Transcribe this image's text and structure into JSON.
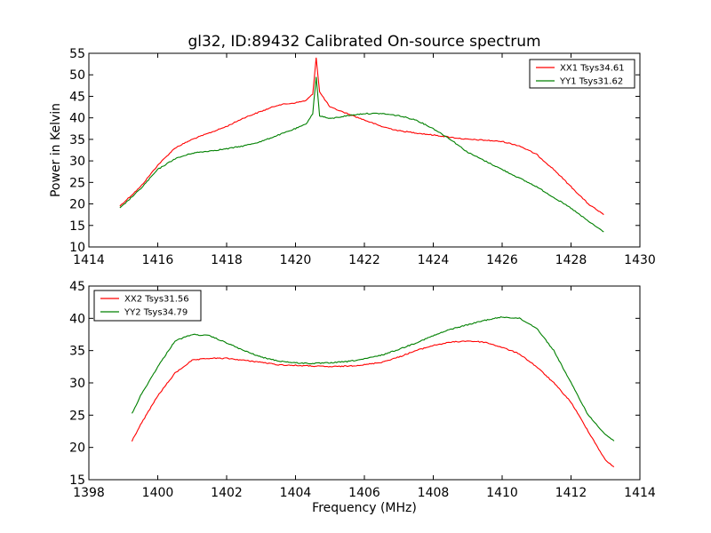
{
  "figure": {
    "title": "gl32, ID:89432 Calibrated On-source spectrum",
    "shared_ylabel": "Power in Kelvin",
    "shared_xlabel": "Frequency (MHz)"
  },
  "chart_data": [
    {
      "type": "line",
      "xlim": [
        1414,
        1430
      ],
      "ylim": [
        10,
        55
      ],
      "xticks": [
        1414,
        1416,
        1418,
        1420,
        1422,
        1424,
        1426,
        1428,
        1430
      ],
      "yticks": [
        10,
        15,
        20,
        25,
        30,
        35,
        40,
        45,
        50,
        55
      ],
      "legend_position": "top-right",
      "grid": false,
      "series": [
        {
          "name": "XX1 Tsys34.61",
          "color": "#ff0000",
          "x": [
            1414.9,
            1415.5,
            1416.0,
            1416.5,
            1417.0,
            1417.5,
            1418.0,
            1418.5,
            1419.0,
            1419.5,
            1420.0,
            1420.3,
            1420.5,
            1420.6,
            1420.7,
            1421.0,
            1421.5,
            1422.0,
            1422.5,
            1423.0,
            1423.5,
            1424.0,
            1424.5,
            1425.0,
            1425.5,
            1426.0,
            1426.5,
            1427.0,
            1427.5,
            1428.0,
            1428.5,
            1428.95
          ],
          "y": [
            19.5,
            24.0,
            29.0,
            33.0,
            35.0,
            36.5,
            38.0,
            40.0,
            41.5,
            43.0,
            43.5,
            44.0,
            45.5,
            54.0,
            46.0,
            42.5,
            41.0,
            39.5,
            38.0,
            37.0,
            36.5,
            36.0,
            35.5,
            35.0,
            34.8,
            34.5,
            33.5,
            31.5,
            28.0,
            24.0,
            20.0,
            17.5
          ]
        },
        {
          "name": "YY1 Tsys31.62",
          "color": "#008000",
          "x": [
            1414.9,
            1415.5,
            1416.0,
            1416.5,
            1417.0,
            1417.5,
            1418.0,
            1418.5,
            1419.0,
            1419.5,
            1420.0,
            1420.3,
            1420.5,
            1420.6,
            1420.7,
            1421.0,
            1421.5,
            1422.0,
            1422.5,
            1423.0,
            1423.5,
            1424.0,
            1424.5,
            1425.0,
            1425.5,
            1426.0,
            1426.5,
            1427.0,
            1427.5,
            1428.0,
            1428.5,
            1428.95
          ],
          "y": [
            19.0,
            23.5,
            28.0,
            30.5,
            31.8,
            32.3,
            32.8,
            33.5,
            34.5,
            36.0,
            37.5,
            38.5,
            41.0,
            49.5,
            40.5,
            39.8,
            40.5,
            41.0,
            41.0,
            40.5,
            39.5,
            37.5,
            35.0,
            32.0,
            30.0,
            28.0,
            26.0,
            24.0,
            21.5,
            19.0,
            16.0,
            13.5
          ]
        }
      ]
    },
    {
      "type": "line",
      "xlim": [
        1398,
        1414
      ],
      "ylim": [
        15,
        45
      ],
      "xticks": [
        1398,
        1400,
        1402,
        1404,
        1406,
        1408,
        1410,
        1412,
        1414
      ],
      "yticks": [
        15,
        20,
        25,
        30,
        35,
        40,
        45
      ],
      "legend_position": "top-left",
      "grid": false,
      "series": [
        {
          "name": "XX2 Tsys31.56",
          "color": "#ff0000",
          "x": [
            1399.25,
            1399.5,
            1400.0,
            1400.5,
            1401.0,
            1401.5,
            1402.0,
            1402.5,
            1403.0,
            1403.5,
            1404.0,
            1404.5,
            1405.0,
            1405.5,
            1406.0,
            1406.5,
            1407.0,
            1407.5,
            1408.0,
            1408.5,
            1409.0,
            1409.5,
            1410.0,
            1410.5,
            1411.0,
            1411.5,
            1412.0,
            1412.5,
            1413.0,
            1413.25
          ],
          "y": [
            21.0,
            23.5,
            28.0,
            31.5,
            33.5,
            33.8,
            33.8,
            33.5,
            33.2,
            32.8,
            32.7,
            32.6,
            32.5,
            32.6,
            32.8,
            33.2,
            34.0,
            35.0,
            35.8,
            36.3,
            36.5,
            36.3,
            35.5,
            34.5,
            32.5,
            30.0,
            27.0,
            22.5,
            18.0,
            17.0
          ]
        },
        {
          "name": "YY2 Tsys34.79",
          "color": "#008000",
          "x": [
            1399.25,
            1399.5,
            1400.0,
            1400.5,
            1401.0,
            1401.5,
            1402.0,
            1402.5,
            1403.0,
            1403.5,
            1404.0,
            1404.5,
            1405.0,
            1405.5,
            1406.0,
            1406.5,
            1407.0,
            1407.5,
            1408.0,
            1408.5,
            1409.0,
            1409.5,
            1410.0,
            1410.5,
            1411.0,
            1411.5,
            1412.0,
            1412.5,
            1413.0,
            1413.25
          ],
          "y": [
            25.2,
            28.0,
            32.5,
            36.5,
            37.5,
            37.3,
            36.2,
            35.0,
            34.0,
            33.4,
            33.1,
            33.0,
            33.1,
            33.3,
            33.7,
            34.3,
            35.2,
            36.2,
            37.3,
            38.3,
            39.0,
            39.7,
            40.2,
            40.0,
            38.5,
            35.0,
            30.0,
            25.0,
            22.0,
            21.0
          ]
        }
      ]
    }
  ]
}
